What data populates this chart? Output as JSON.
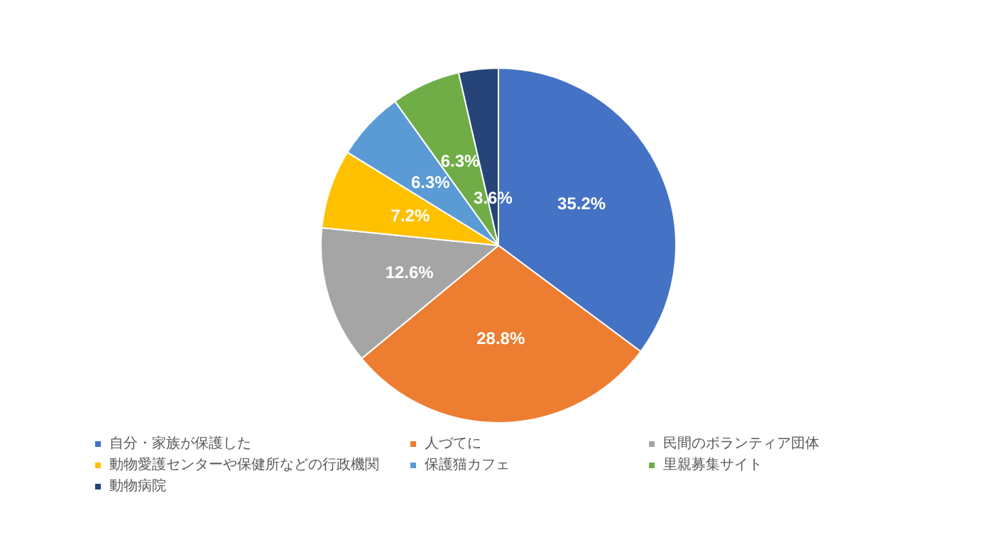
{
  "chart_data": {
    "type": "pie",
    "categories": [
      "自分・家族が保護した",
      "人づてに",
      "民間のボランティア団体",
      "動物愛護センターや保健所などの行政機関",
      "保護猫カフェ",
      "里親募集サイト",
      "動物病院"
    ],
    "values": [
      35.2,
      28.8,
      12.6,
      7.2,
      6.3,
      6.3,
      3.6
    ],
    "value_labels": [
      "35.2%",
      "28.8%",
      "12.6%",
      "7.2%",
      "6.3%",
      "6.3%",
      "3.6%"
    ],
    "colors": [
      "#4472c4",
      "#ed7d31",
      "#a5a5a5",
      "#ffc000",
      "#5b9bd5",
      "#70ad47",
      "#264478"
    ],
    "legend": "bottom"
  }
}
